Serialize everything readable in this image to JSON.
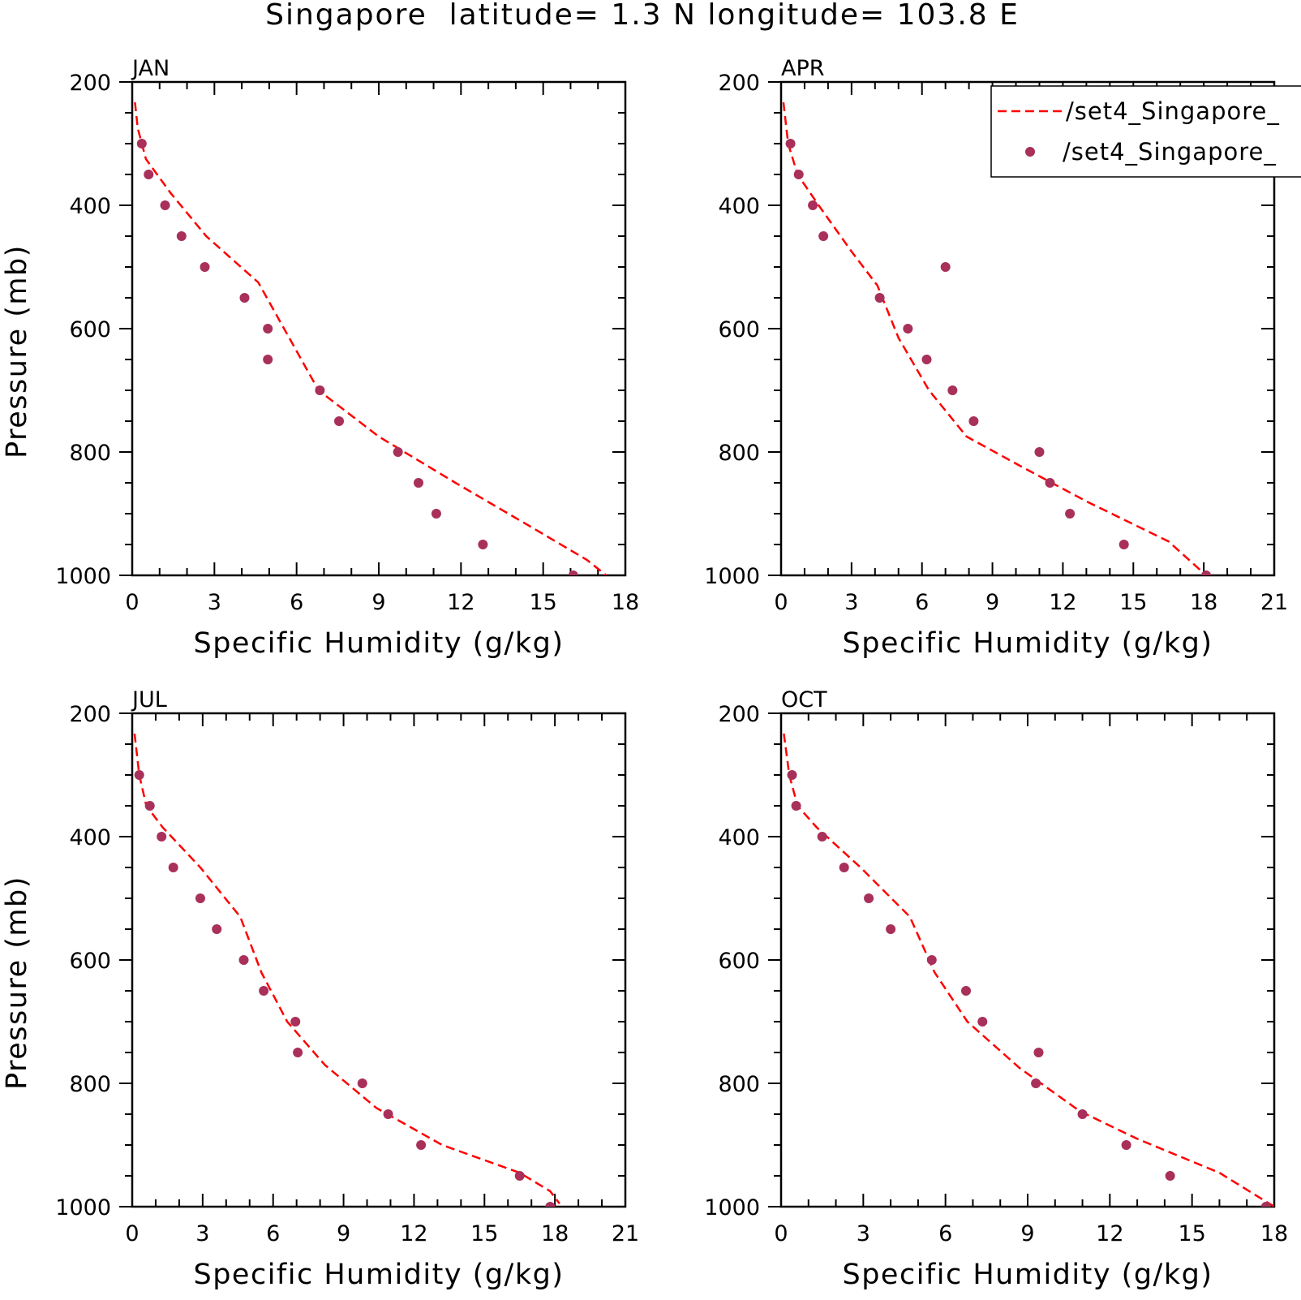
{
  "figure": {
    "title": "Singapore  latitude= 1.3 N longitude= 103.8 E"
  },
  "legend": {
    "entries": [
      {
        "label": "/set4_Singapore_",
        "style": "dashed-line",
        "color": "#ff0000"
      },
      {
        "label": "/set4_Singapore_",
        "style": "dot",
        "color": "#a8305a"
      }
    ]
  },
  "colors": {
    "line": "#ff0000",
    "dots": "#a8305a",
    "axes": "#000000"
  },
  "chart_data": [
    {
      "type": "line",
      "panel": "JAN",
      "title": "JAN",
      "xlabel": "Specific Humidity (g/kg)",
      "ylabel": "Pressure (mb)",
      "xlim": [
        0,
        18
      ],
      "ylim": [
        1000,
        200
      ],
      "xticks": [
        0,
        3,
        6,
        9,
        12,
        15,
        18
      ],
      "yticks": [
        200,
        400,
        600,
        800,
        1000
      ],
      "line_series": {
        "x": [
          0.1,
          0.2,
          0.5,
          1.4,
          2.7,
          4.6,
          6.8,
          9.0,
          11.8,
          14.5,
          16.6,
          17.3
        ],
        "y": [
          233,
          275,
          325,
          380,
          450,
          525,
          700,
          775,
          850,
          920,
          975,
          1000
        ]
      },
      "dot_series": {
        "x": [
          0.35,
          0.6,
          1.2,
          1.8,
          2.65,
          4.1,
          4.95,
          4.95,
          6.85,
          7.55,
          9.7,
          10.45,
          11.1,
          12.8,
          16.1
        ],
        "y": [
          300,
          350,
          400,
          450,
          500,
          550,
          600,
          650,
          700,
          750,
          800,
          850,
          900,
          950,
          1000
        ]
      }
    },
    {
      "type": "line",
      "panel": "APR",
      "title": "APR",
      "xlabel": "Specific Humidity (g/kg)",
      "ylabel": "",
      "xlim": [
        0,
        21
      ],
      "ylim": [
        1000,
        200
      ],
      "xticks": [
        0,
        3,
        6,
        9,
        12,
        15,
        18,
        21
      ],
      "yticks": [
        200,
        400,
        600,
        800,
        1000
      ],
      "line_series": {
        "x": [
          0.1,
          0.3,
          0.7,
          1.6,
          3.0,
          4.1,
          5.0,
          6.3,
          7.9,
          10.3,
          13.0,
          16.5,
          18.1
        ],
        "y": [
          233,
          300,
          350,
          400,
          475,
          530,
          615,
          700,
          775,
          825,
          880,
          945,
          1000
        ]
      },
      "dot_series": {
        "x": [
          0.4,
          0.75,
          1.35,
          1.8,
          7.0,
          4.2,
          5.4,
          6.2,
          7.3,
          8.2,
          11.0,
          11.45,
          12.3,
          14.6,
          18.1
        ],
        "y": [
          300,
          350,
          400,
          450,
          500,
          550,
          600,
          650,
          700,
          750,
          800,
          850,
          900,
          950,
          1000
        ]
      }
    },
    {
      "type": "line",
      "panel": "JUL",
      "title": "JUL",
      "xlabel": "Specific Humidity (g/kg)",
      "ylabel": "Pressure (mb)",
      "xlim": [
        0,
        21
      ],
      "ylim": [
        1000,
        200
      ],
      "xticks": [
        0,
        3,
        6,
        9,
        12,
        15,
        18,
        21
      ],
      "yticks": [
        200,
        400,
        600,
        800,
        1000
      ],
      "line_series": {
        "x": [
          0.1,
          0.3,
          0.6,
          1.3,
          2.9,
          4.6,
          5.5,
          6.6,
          8.2,
          10.4,
          13.2,
          16.5,
          17.8,
          18.2
        ],
        "y": [
          233,
          300,
          350,
          385,
          450,
          530,
          620,
          700,
          770,
          840,
          900,
          945,
          975,
          995
        ]
      },
      "dot_series": {
        "x": [
          0.3,
          0.75,
          1.25,
          1.75,
          2.9,
          3.6,
          4.75,
          5.6,
          6.95,
          7.05,
          9.8,
          10.9,
          12.3,
          16.5,
          17.8
        ],
        "y": [
          300,
          350,
          400,
          450,
          500,
          550,
          600,
          650,
          700,
          750,
          800,
          850,
          900,
          950,
          1000
        ]
      }
    },
    {
      "type": "line",
      "panel": "OCT",
      "title": "OCT",
      "xlabel": "Specific Humidity (g/kg)",
      "ylabel": "",
      "xlim": [
        0,
        18
      ],
      "ylim": [
        1000,
        200
      ],
      "xticks": [
        0,
        3,
        6,
        9,
        12,
        15,
        18
      ],
      "yticks": [
        200,
        400,
        600,
        800,
        1000
      ],
      "line_series": {
        "x": [
          0.1,
          0.3,
          0.6,
          1.3,
          2.9,
          4.7,
          5.6,
          6.8,
          8.7,
          10.9,
          13.0,
          16.0,
          18.0
        ],
        "y": [
          233,
          300,
          350,
          385,
          450,
          530,
          620,
          700,
          775,
          845,
          890,
          945,
          1000
        ]
      },
      "dot_series": {
        "x": [
          0.4,
          0.55,
          1.5,
          2.3,
          3.2,
          4.0,
          5.5,
          6.75,
          7.35,
          9.4,
          9.3,
          11.0,
          12.6,
          14.2,
          17.7
        ],
        "y": [
          300,
          350,
          400,
          450,
          500,
          550,
          600,
          650,
          700,
          750,
          800,
          850,
          900,
          950,
          1000
        ]
      }
    }
  ]
}
